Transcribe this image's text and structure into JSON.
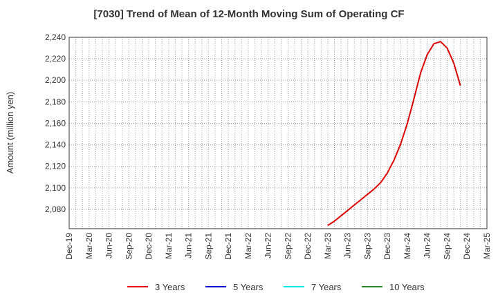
{
  "chart_data": {
    "type": "line",
    "title": "[7030]  Trend of Mean of 12-Month Moving Sum of Operating CF",
    "xlabel": "",
    "ylabel": "Amount (million yen)",
    "ylim": [
      2062,
      2240
    ],
    "yticks": [
      2080,
      2100,
      2120,
      2140,
      2160,
      2180,
      2200,
      2220,
      2240
    ],
    "ytick_labels": [
      "2,080",
      "2,100",
      "2,120",
      "2,140",
      "2,160",
      "2,180",
      "2,200",
      "2,220",
      "2,240"
    ],
    "x_categories": [
      "Dec-19",
      "Mar-20",
      "Jun-20",
      "Sep-20",
      "Dec-20",
      "Mar-21",
      "Jun-21",
      "Sep-21",
      "Dec-21",
      "Mar-22",
      "Jun-22",
      "Sep-22",
      "Dec-22",
      "Mar-23",
      "Jun-23",
      "Sep-23",
      "Dec-23",
      "Mar-24",
      "Jun-24",
      "Sep-24",
      "Dec-24",
      "Mar-25"
    ],
    "grid": true,
    "legend_position": "bottom",
    "series": [
      {
        "name": "3 Years",
        "color": "#dd0000",
        "points": [
          [
            "Mar-23",
            2065
          ],
          [
            "Apr-23",
            2069
          ],
          [
            "May-23",
            2074
          ],
          [
            "Jun-23",
            2079
          ],
          [
            "Jul-23",
            2084
          ],
          [
            "Aug-23",
            2089
          ],
          [
            "Sep-23",
            2094
          ],
          [
            "Oct-23",
            2099
          ],
          [
            "Nov-23",
            2105
          ],
          [
            "Dec-23",
            2114
          ],
          [
            "Jan-24",
            2126
          ],
          [
            "Feb-24",
            2141
          ],
          [
            "Mar-24",
            2160
          ],
          [
            "Apr-24",
            2183
          ],
          [
            "May-24",
            2207
          ],
          [
            "Jun-24",
            2224
          ],
          [
            "Jul-24",
            2234
          ],
          [
            "Aug-24",
            2236
          ],
          [
            "Sep-24",
            2230
          ],
          [
            "Oct-24",
            2216
          ],
          [
            "Nov-24",
            2195
          ]
        ]
      },
      {
        "name": "5 Years",
        "color": "#0000cc",
        "points": []
      },
      {
        "name": "7 Years",
        "color": "#00e5ee",
        "points": []
      },
      {
        "name": "10 Years",
        "color": "#228b22",
        "points": []
      }
    ]
  }
}
